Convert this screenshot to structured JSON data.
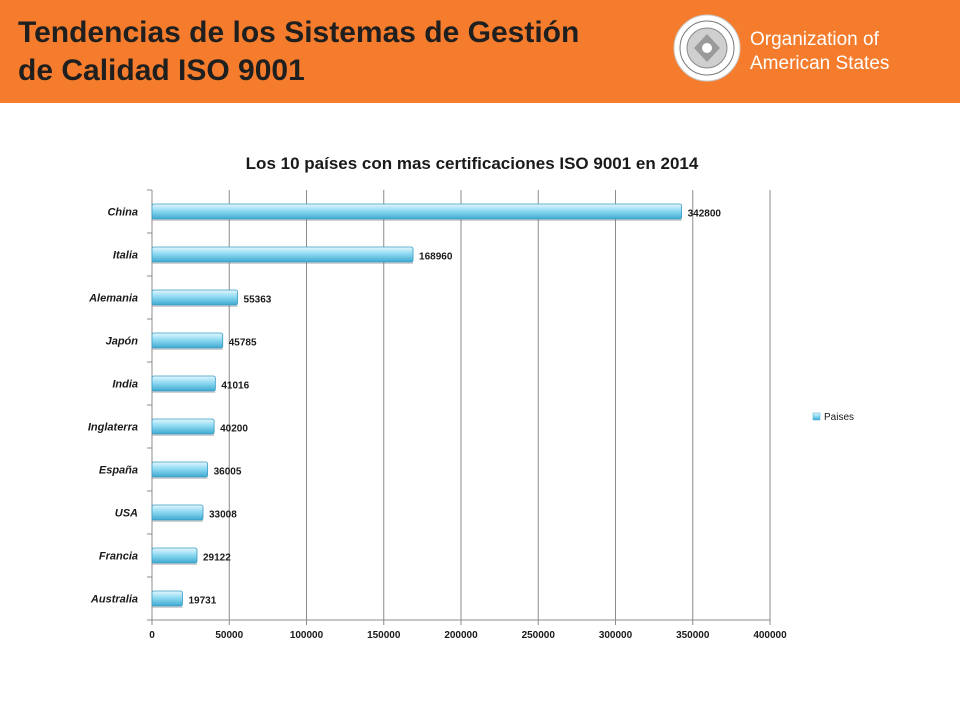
{
  "header": {
    "title_line1": "Tendencias de los Sistemas de Gestión",
    "title_line2": "de Calidad ISO 9001",
    "org_line1": "Organization of",
    "org_line2": "American States"
  },
  "colors": {
    "header_bg": "#f47c2c",
    "bar": "#6fd0ee"
  },
  "chart_data": {
    "type": "bar",
    "orientation": "horizontal",
    "title": "Los 10 países con mas certificaciones ISO 9001 en 2014",
    "categories": [
      "China",
      "Italia",
      "Alemania",
      "Japón",
      "India",
      "Inglaterra",
      "España",
      "USA",
      "Francia",
      "Australia"
    ],
    "series": [
      {
        "name": "Paises",
        "values": [
          342800,
          168960,
          55363,
          45785,
          41016,
          40200,
          36005,
          33008,
          29122,
          19731
        ]
      }
    ],
    "xticks": [
      0,
      50000,
      100000,
      150000,
      200000,
      250000,
      300000,
      350000,
      400000
    ],
    "xlim": [
      0,
      400000
    ],
    "grid": true,
    "legend": "right"
  }
}
